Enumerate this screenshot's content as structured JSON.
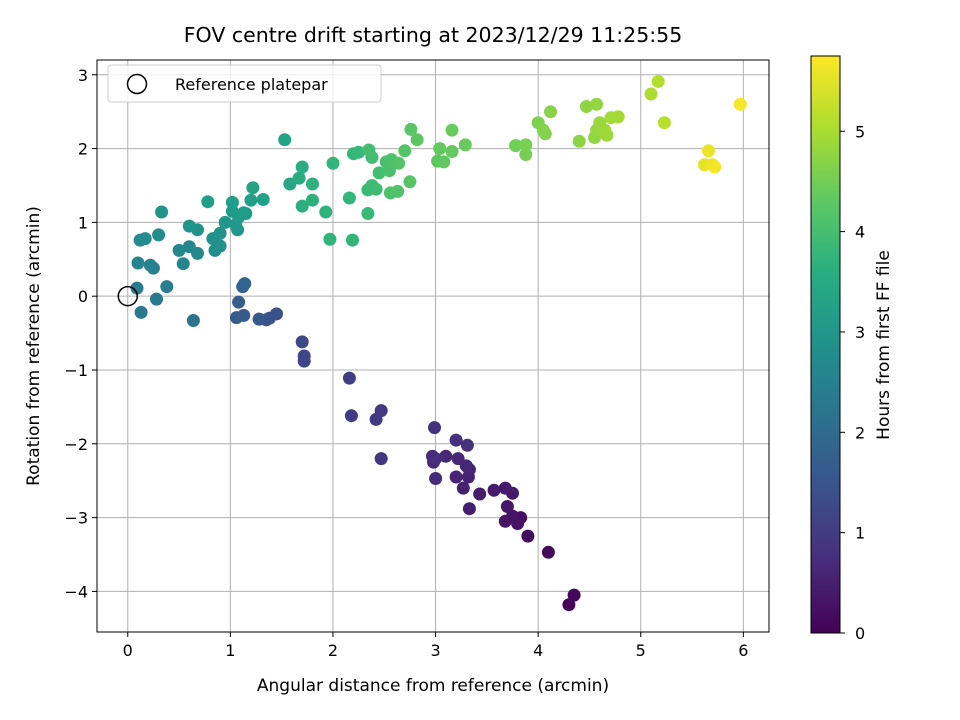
{
  "chart_data": {
    "type": "scatter",
    "title": "FOV centre drift starting at 2023/12/29 11:25:55",
    "xlabel": "Angular distance from reference (arcmin)",
    "ylabel": "Rotation from reference (arcmin)",
    "colorbar_label": "Hours from first FF file",
    "xlim": [
      -0.3,
      6.25
    ],
    "ylim": [
      -4.55,
      3.2
    ],
    "xticks": [
      0,
      1,
      2,
      3,
      4,
      5,
      6
    ],
    "yticks": [
      -4,
      -3,
      -2,
      -1,
      0,
      1,
      2,
      3
    ],
    "colorbar_ticks": [
      0,
      1,
      2,
      3,
      4,
      5
    ],
    "colorbar_range": [
      0,
      5.75
    ],
    "colormap": "viridis",
    "grid": true,
    "legend": {
      "placement": "top-left",
      "entries": [
        "Reference platepar"
      ]
    },
    "reference_point": {
      "x": 0,
      "y": 0
    },
    "points": [
      {
        "x": 4.3,
        "y": -4.18,
        "c": 0.05
      },
      {
        "x": 4.35,
        "y": -4.05,
        "c": 0.1
      },
      {
        "x": 4.1,
        "y": -3.47,
        "c": 0.15
      },
      {
        "x": 3.9,
        "y": -3.25,
        "c": 0.2
      },
      {
        "x": 3.83,
        "y": -3.0,
        "c": 0.25
      },
      {
        "x": 3.8,
        "y": -3.08,
        "c": 0.28
      },
      {
        "x": 3.75,
        "y": -2.98,
        "c": 0.3
      },
      {
        "x": 3.68,
        "y": -3.05,
        "c": 0.32
      },
      {
        "x": 3.7,
        "y": -2.85,
        "c": 0.35
      },
      {
        "x": 3.75,
        "y": -2.67,
        "c": 0.38
      },
      {
        "x": 3.68,
        "y": -2.6,
        "c": 0.4
      },
      {
        "x": 3.57,
        "y": -2.63,
        "c": 0.42
      },
      {
        "x": 3.43,
        "y": -2.68,
        "c": 0.45
      },
      {
        "x": 3.33,
        "y": -2.88,
        "c": 0.48
      },
      {
        "x": 3.27,
        "y": -2.6,
        "c": 0.5
      },
      {
        "x": 3.32,
        "y": -2.45,
        "c": 0.52
      },
      {
        "x": 3.33,
        "y": -2.35,
        "c": 0.55
      },
      {
        "x": 3.2,
        "y": -2.45,
        "c": 0.58
      },
      {
        "x": 3.3,
        "y": -2.3,
        "c": 0.6
      },
      {
        "x": 3.22,
        "y": -2.2,
        "c": 0.62
      },
      {
        "x": 3.1,
        "y": -2.17,
        "c": 0.65
      },
      {
        "x": 2.98,
        "y": -2.25,
        "c": 0.68
      },
      {
        "x": 2.97,
        "y": -2.17,
        "c": 0.7
      },
      {
        "x": 3.0,
        "y": -2.47,
        "c": 0.72
      },
      {
        "x": 3.0,
        "y": -2.2,
        "c": 0.75
      },
      {
        "x": 3.2,
        "y": -1.95,
        "c": 0.78
      },
      {
        "x": 3.31,
        "y": -2.02,
        "c": 0.8
      },
      {
        "x": 2.99,
        "y": -1.78,
        "c": 0.82
      },
      {
        "x": 2.47,
        "y": -2.2,
        "c": 0.9
      },
      {
        "x": 2.47,
        "y": -1.55,
        "c": 0.95
      },
      {
        "x": 2.42,
        "y": -1.67,
        "c": 0.98
      },
      {
        "x": 2.18,
        "y": -1.62,
        "c": 1.02
      },
      {
        "x": 2.16,
        "y": -1.11,
        "c": 1.08
      },
      {
        "x": 1.72,
        "y": -0.88,
        "c": 1.18
      },
      {
        "x": 1.72,
        "y": -0.81,
        "c": 1.2
      },
      {
        "x": 1.7,
        "y": -0.62,
        "c": 1.25
      },
      {
        "x": 1.45,
        "y": -0.24,
        "c": 1.4
      },
      {
        "x": 1.38,
        "y": -0.3,
        "c": 1.45
      },
      {
        "x": 1.35,
        "y": -0.32,
        "c": 1.5
      },
      {
        "x": 1.28,
        "y": -0.31,
        "c": 1.55
      },
      {
        "x": 1.13,
        "y": -0.26,
        "c": 1.6
      },
      {
        "x": 1.06,
        "y": -0.29,
        "c": 1.65
      },
      {
        "x": 1.08,
        "y": -0.08,
        "c": 1.7
      },
      {
        "x": 1.12,
        "y": 0.13,
        "c": 1.8
      },
      {
        "x": 1.14,
        "y": 0.17,
        "c": 1.85
      },
      {
        "x": 0.64,
        "y": -0.33,
        "c": 2.2
      },
      {
        "x": 0.13,
        "y": -0.22,
        "c": 2.3
      },
      {
        "x": 0.28,
        "y": -0.04,
        "c": 2.35
      },
      {
        "x": 0.09,
        "y": 0.11,
        "c": 2.4
      },
      {
        "x": 0.38,
        "y": 0.13,
        "c": 2.45
      },
      {
        "x": 0.25,
        "y": 0.38,
        "c": 2.5
      },
      {
        "x": 0.22,
        "y": 0.42,
        "c": 2.55
      },
      {
        "x": 0.1,
        "y": 0.45,
        "c": 2.6
      },
      {
        "x": 0.54,
        "y": 0.44,
        "c": 2.62
      },
      {
        "x": 0.6,
        "y": 0.67,
        "c": 2.65
      },
      {
        "x": 0.68,
        "y": 0.58,
        "c": 2.7
      },
      {
        "x": 0.5,
        "y": 0.62,
        "c": 2.72
      },
      {
        "x": 0.12,
        "y": 0.76,
        "c": 2.75
      },
      {
        "x": 0.17,
        "y": 0.78,
        "c": 2.78
      },
      {
        "x": 0.3,
        "y": 0.83,
        "c": 2.8
      },
      {
        "x": 0.85,
        "y": 0.62,
        "c": 2.85
      },
      {
        "x": 0.9,
        "y": 0.68,
        "c": 2.87
      },
      {
        "x": 0.83,
        "y": 0.78,
        "c": 2.9
      },
      {
        "x": 0.9,
        "y": 0.85,
        "c": 2.92
      },
      {
        "x": 0.68,
        "y": 0.9,
        "c": 2.95
      },
      {
        "x": 0.6,
        "y": 0.95,
        "c": 2.97
      },
      {
        "x": 0.33,
        "y": 1.14,
        "c": 3.0
      },
      {
        "x": 0.95,
        "y": 1.0,
        "c": 3.02
      },
      {
        "x": 1.07,
        "y": 0.9,
        "c": 3.05
      },
      {
        "x": 1.05,
        "y": 0.97,
        "c": 3.07
      },
      {
        "x": 1.08,
        "y": 1.07,
        "c": 3.1
      },
      {
        "x": 1.02,
        "y": 1.15,
        "c": 3.12
      },
      {
        "x": 1.15,
        "y": 1.12,
        "c": 3.15
      },
      {
        "x": 1.13,
        "y": 1.13,
        "c": 3.17
      },
      {
        "x": 1.02,
        "y": 1.27,
        "c": 3.2
      },
      {
        "x": 0.78,
        "y": 1.28,
        "c": 3.22
      },
      {
        "x": 1.2,
        "y": 1.3,
        "c": 3.25
      },
      {
        "x": 1.32,
        "y": 1.31,
        "c": 3.27
      },
      {
        "x": 1.22,
        "y": 1.47,
        "c": 3.3
      },
      {
        "x": 1.53,
        "y": 2.12,
        "c": 3.32
      },
      {
        "x": 1.58,
        "y": 1.52,
        "c": 3.4
      },
      {
        "x": 1.67,
        "y": 1.6,
        "c": 3.5
      },
      {
        "x": 1.7,
        "y": 1.75,
        "c": 3.55
      },
      {
        "x": 1.7,
        "y": 1.22,
        "c": 3.6
      },
      {
        "x": 1.8,
        "y": 1.3,
        "c": 3.62
      },
      {
        "x": 1.8,
        "y": 1.52,
        "c": 3.65
      },
      {
        "x": 1.93,
        "y": 1.14,
        "c": 3.7
      },
      {
        "x": 1.97,
        "y": 0.77,
        "c": 3.72
      },
      {
        "x": 2.0,
        "y": 1.8,
        "c": 3.75
      },
      {
        "x": 2.19,
        "y": 0.76,
        "c": 3.78
      },
      {
        "x": 2.16,
        "y": 1.33,
        "c": 3.8
      },
      {
        "x": 2.2,
        "y": 1.93,
        "c": 3.82
      },
      {
        "x": 2.25,
        "y": 1.95,
        "c": 3.85
      },
      {
        "x": 2.34,
        "y": 1.12,
        "c": 3.88
      },
      {
        "x": 2.34,
        "y": 1.44,
        "c": 3.9
      },
      {
        "x": 2.38,
        "y": 1.5,
        "c": 3.92
      },
      {
        "x": 2.42,
        "y": 1.45,
        "c": 3.95
      },
      {
        "x": 2.38,
        "y": 1.88,
        "c": 3.97
      },
      {
        "x": 2.35,
        "y": 1.98,
        "c": 4.0
      },
      {
        "x": 2.45,
        "y": 1.67,
        "c": 4.02
      },
      {
        "x": 2.52,
        "y": 1.82,
        "c": 4.05
      },
      {
        "x": 2.55,
        "y": 1.7,
        "c": 4.07
      },
      {
        "x": 2.57,
        "y": 1.85,
        "c": 4.1
      },
      {
        "x": 2.56,
        "y": 1.4,
        "c": 4.12
      },
      {
        "x": 2.63,
        "y": 1.42,
        "c": 4.15
      },
      {
        "x": 2.64,
        "y": 1.8,
        "c": 4.17
      },
      {
        "x": 2.7,
        "y": 1.97,
        "c": 4.2
      },
      {
        "x": 2.75,
        "y": 1.55,
        "c": 4.22
      },
      {
        "x": 2.76,
        "y": 2.26,
        "c": 4.25
      },
      {
        "x": 2.82,
        "y": 2.12,
        "c": 4.27
      },
      {
        "x": 3.02,
        "y": 1.83,
        "c": 4.3
      },
      {
        "x": 3.08,
        "y": 1.82,
        "c": 4.32
      },
      {
        "x": 3.04,
        "y": 2.0,
        "c": 4.35
      },
      {
        "x": 3.16,
        "y": 1.96,
        "c": 4.37
      },
      {
        "x": 3.16,
        "y": 2.25,
        "c": 4.4
      },
      {
        "x": 3.29,
        "y": 2.05,
        "c": 4.42
      },
      {
        "x": 3.78,
        "y": 2.04,
        "c": 4.5
      },
      {
        "x": 3.88,
        "y": 1.92,
        "c": 4.55
      },
      {
        "x": 3.88,
        "y": 2.05,
        "c": 4.57
      },
      {
        "x": 4.0,
        "y": 2.35,
        "c": 4.62
      },
      {
        "x": 4.05,
        "y": 2.25,
        "c": 4.65
      },
      {
        "x": 4.07,
        "y": 2.2,
        "c": 4.67
      },
      {
        "x": 4.12,
        "y": 2.5,
        "c": 4.7
      },
      {
        "x": 4.4,
        "y": 2.1,
        "c": 4.75
      },
      {
        "x": 4.47,
        "y": 2.57,
        "c": 4.78
      },
      {
        "x": 4.55,
        "y": 2.15,
        "c": 4.8
      },
      {
        "x": 4.57,
        "y": 2.6,
        "c": 4.82
      },
      {
        "x": 4.57,
        "y": 2.25,
        "c": 4.85
      },
      {
        "x": 4.6,
        "y": 2.35,
        "c": 4.87
      },
      {
        "x": 4.65,
        "y": 2.25,
        "c": 4.9
      },
      {
        "x": 4.67,
        "y": 2.18,
        "c": 4.92
      },
      {
        "x": 4.71,
        "y": 2.42,
        "c": 4.95
      },
      {
        "x": 4.78,
        "y": 2.43,
        "c": 4.97
      },
      {
        "x": 5.1,
        "y": 2.74,
        "c": 5.05
      },
      {
        "x": 5.17,
        "y": 2.91,
        "c": 5.1
      },
      {
        "x": 5.23,
        "y": 2.35,
        "c": 5.15
      },
      {
        "x": 5.62,
        "y": 1.78,
        "c": 5.55
      },
      {
        "x": 5.66,
        "y": 1.97,
        "c": 5.6
      },
      {
        "x": 5.7,
        "y": 1.78,
        "c": 5.62
      },
      {
        "x": 5.72,
        "y": 1.75,
        "c": 5.65
      },
      {
        "x": 5.97,
        "y": 2.6,
        "c": 5.7
      }
    ]
  }
}
